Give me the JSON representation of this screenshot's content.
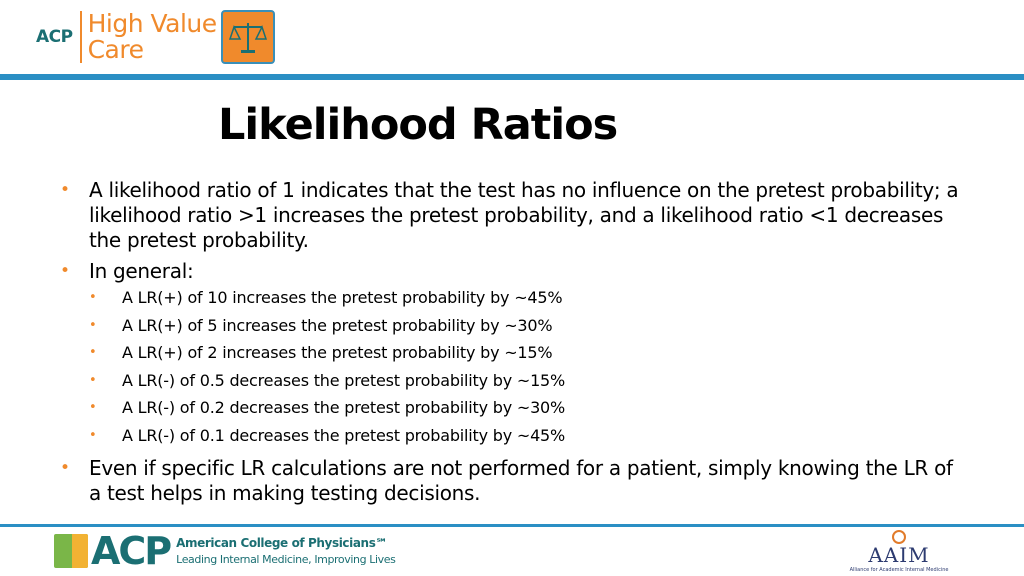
{
  "header": {
    "acp": "ACP",
    "high_value": "High Value",
    "care": "Care"
  },
  "title": "Likelihood Ratios",
  "bullets": {
    "b1": "A likelihood ratio of 1 indicates that the test has no influence on the pretest probability; a likelihood ratio >1 increases the pretest probability, and a likelihood ratio <1 decreases the pretest probability.",
    "b2": "In general:",
    "sub": [
      "A LR(+) of 10 increases the pretest probability by ~45%",
      "A LR(+) of 5 increases the pretest probability by ~30%",
      "A LR(+) of 2 increases the pretest probability by ~15%",
      "A LR(-) of 0.5 decreases the pretest probability by ~15%",
      "A LR(-) of 0.2 decreases the pretest probability by ~30%",
      "A LR(-) of 0.1 decreases the pretest probability by ~45%"
    ],
    "b3": "Even if specific LR calculations are not performed for a patient, simply knowing the LR of a test helps in making testing decisions."
  },
  "footer": {
    "acp": "ACP",
    "acp_name": "American College of Physicians℠",
    "acp_sub": "Leading Internal Medicine, Improving Lives",
    "aaim": "AAIM",
    "aaim_sub": "Alliance for Academic Internal Medicine"
  },
  "colors": {
    "accent_orange": "#f08a2c",
    "rule_blue": "#2a8fc4",
    "brand_teal": "#1b6f73"
  },
  "icons": [
    "scales-icon",
    "acp-mark-icon",
    "aaim-arc-icon"
  ]
}
